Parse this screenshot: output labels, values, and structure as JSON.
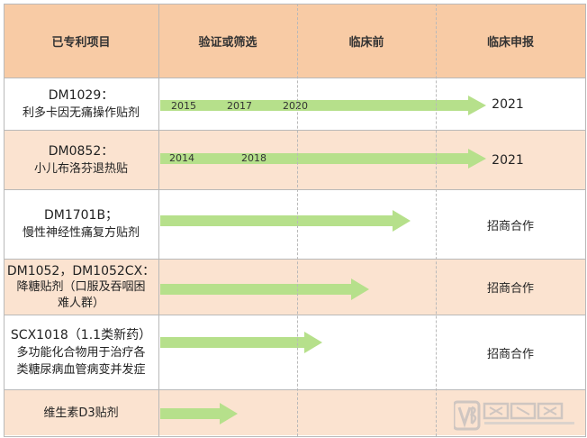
{
  "headers": [
    "已专利项目",
    "验证或筛选",
    "临床前",
    "临床申报"
  ],
  "rows": [
    {
      "name1": "DM1029：",
      "name2": "利多卡因无痛操作贴剂",
      "name3": "",
      "years": [
        "2015",
        "2017",
        "2020"
      ],
      "result": "2021"
    },
    {
      "name1": "DM0852：",
      "name2": "小儿布洛芬退热贴",
      "name3": "",
      "years": [
        "2014",
        "2018"
      ],
      "result": "2021"
    },
    {
      "name1": "DM1701B；",
      "name2": "慢性神经性痛复方贴剂",
      "name3": "",
      "years": [],
      "result": "招商合作"
    },
    {
      "name1": "DM1052，DM1052CX：",
      "name2": "降糖贴剂（口服及吞咽困",
      "name3": "难人群）",
      "years": [],
      "result": "招商合作"
    },
    {
      "name1": "SCX1018（1.1类新药）",
      "name2": "多功能化合物用于治疗各",
      "name3": "类糖尿病血管病变并发症",
      "years": [],
      "result": "招商合作"
    },
    {
      "name1": "维生素D3贴剂",
      "name2": "",
      "name3": "",
      "years": [],
      "result": ""
    }
  ],
  "colors": {
    "header": "#f8cba5",
    "peach": "#fbe3d0",
    "arrow": "#b6e08b"
  },
  "watermark_icon": "vb-logo-icon"
}
